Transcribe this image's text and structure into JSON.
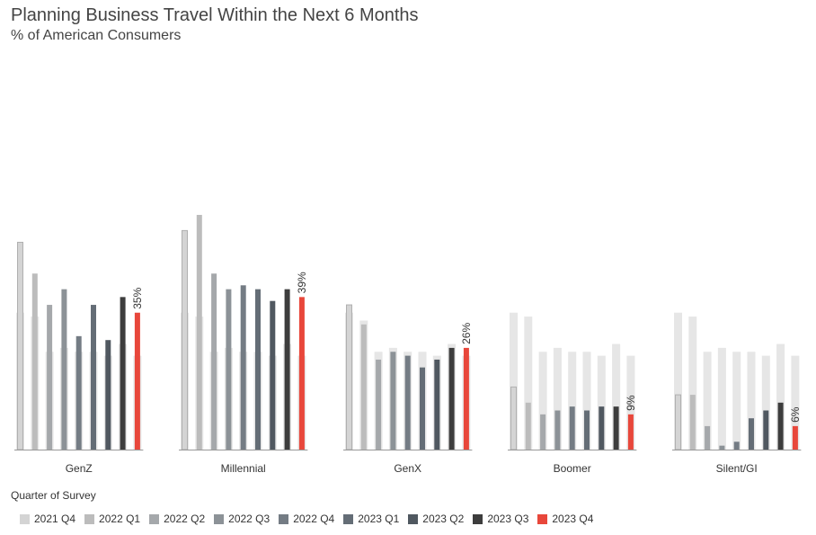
{
  "header": {
    "title": "Planning Business Travel Within the Next 6 Months",
    "subtitle": "% of American Consumers"
  },
  "legend": {
    "title": "Quarter of Survey"
  },
  "colors": {
    "background_bar": "#e6e6e6",
    "axis": "#999999",
    "series": [
      "#d4d4d4",
      "#bcbcbc",
      "#a5a8ab",
      "#8c9297",
      "#747c84",
      "#646d76",
      "#505860",
      "#3d3d3d",
      "#e8473b"
    ]
  },
  "chart_data": {
    "type": "bar",
    "categories": [
      "GenZ",
      "Millennial",
      "GenX",
      "Boomer",
      "Silent/GI"
    ],
    "series": [
      {
        "name": "2021 Q4",
        "values": [
          53,
          56,
          37,
          16,
          14
        ]
      },
      {
        "name": "2022 Q1",
        "values": [
          45,
          60,
          32,
          12,
          14
        ]
      },
      {
        "name": "2022 Q2",
        "values": [
          37,
          45,
          23,
          9,
          6
        ]
      },
      {
        "name": "2022 Q3",
        "values": [
          41,
          41,
          25,
          10,
          1
        ]
      },
      {
        "name": "2022 Q4",
        "values": [
          29,
          42,
          24,
          11,
          2
        ]
      },
      {
        "name": "2023 Q1",
        "values": [
          37,
          41,
          21,
          10,
          8
        ]
      },
      {
        "name": "2023 Q2",
        "values": [
          28,
          38,
          23,
          11,
          10
        ]
      },
      {
        "name": "2023 Q3",
        "values": [
          39,
          41,
          26,
          11,
          12
        ]
      },
      {
        "name": "2023 Q4",
        "values": [
          35,
          39,
          26,
          9,
          6
        ]
      }
    ],
    "comparison_values": [
      [
        35,
        35,
        35,
        35,
        35
      ],
      [
        34,
        34,
        33,
        34,
        34
      ],
      [
        25,
        25,
        25,
        25,
        25
      ],
      [
        26,
        26,
        26,
        26,
        26
      ],
      [
        25,
        25,
        25,
        25,
        25
      ],
      [
        25,
        25,
        25,
        25,
        25
      ],
      [
        24,
        24,
        24,
        24,
        24
      ],
      [
        27,
        27,
        27,
        27,
        27
      ],
      [
        24,
        24,
        24,
        24,
        24
      ]
    ],
    "data_labels": [
      "35%",
      "39%",
      "26%",
      "9%",
      "6%"
    ],
    "ylim": [
      0,
      60
    ],
    "grid": false,
    "legend_position": "bottom-left"
  }
}
